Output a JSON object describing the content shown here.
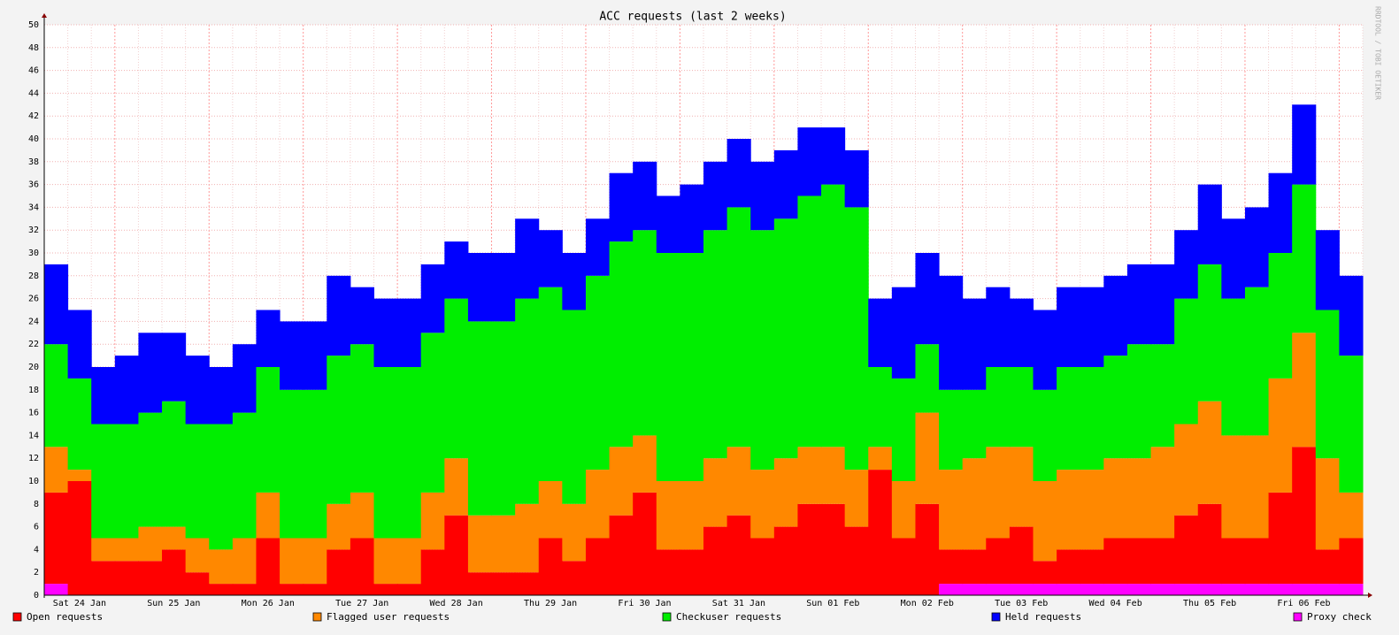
{
  "chart_data": {
    "type": "stacked-area",
    "title": "ACC requests (last 2 weeks)",
    "watermark": "RRDTOOL / TOBI OETIKER",
    "categories": [
      null,
      "Sat 24 Jan",
      null,
      null,
      null,
      "Sun 25 Jan",
      null,
      null,
      null,
      "Mon 26 Jan",
      null,
      null,
      null,
      "Tue 27 Jan",
      null,
      null,
      null,
      "Wed 28 Jan",
      null,
      null,
      null,
      "Thu 29 Jan",
      null,
      null,
      null,
      "Fri 30 Jan",
      null,
      null,
      null,
      "Sat 31 Jan",
      null,
      null,
      null,
      "Sun 01 Feb",
      null,
      null,
      null,
      "Mon 02 Feb",
      null,
      null,
      null,
      "Tue 03 Feb",
      null,
      null,
      null,
      "Wed 04 Feb",
      null,
      null,
      null,
      "Thu 05 Feb",
      null,
      null,
      null,
      "Fri 06 Feb",
      null,
      null
    ],
    "series": [
      {
        "name": "Open requests",
        "color": "#ff0000",
        "values": [
          8,
          10,
          3,
          3,
          3,
          4,
          2,
          1,
          1,
          5,
          1,
          1,
          4,
          5,
          1,
          1,
          4,
          7,
          2,
          2,
          2,
          5,
          3,
          5,
          7,
          9,
          4,
          4,
          6,
          7,
          5,
          6,
          8,
          8,
          6,
          11,
          5,
          8,
          3,
          3,
          4,
          5,
          2,
          3,
          3,
          4,
          4,
          4,
          6,
          7,
          4,
          4,
          8,
          12,
          3,
          4
        ]
      },
      {
        "name": "Flagged user requests",
        "color": "#ff8800",
        "values": [
          4,
          1,
          2,
          2,
          3,
          2,
          3,
          3,
          4,
          4,
          4,
          4,
          4,
          4,
          4,
          4,
          5,
          5,
          5,
          5,
          6,
          5,
          5,
          6,
          6,
          5,
          6,
          6,
          6,
          6,
          6,
          6,
          5,
          5,
          5,
          2,
          5,
          8,
          7,
          8,
          8,
          7,
          7,
          7,
          7,
          7,
          7,
          8,
          8,
          9,
          9,
          9,
          10,
          10,
          8,
          4
        ]
      },
      {
        "name": "Checkuser requests",
        "color": "#00ee00",
        "values": [
          9,
          8,
          10,
          10,
          10,
          11,
          10,
          11,
          11,
          11,
          13,
          13,
          13,
          13,
          15,
          15,
          14,
          14,
          17,
          17,
          18,
          17,
          17,
          17,
          18,
          18,
          20,
          20,
          20,
          21,
          21,
          21,
          22,
          23,
          23,
          7,
          9,
          6,
          7,
          6,
          7,
          7,
          8,
          9,
          9,
          9,
          10,
          9,
          11,
          12,
          12,
          13,
          11,
          13,
          13,
          12
        ]
      },
      {
        "name": "Held requests",
        "color": "#0000ff",
        "values": [
          7,
          6,
          5,
          6,
          7,
          6,
          6,
          5,
          6,
          5,
          6,
          6,
          7,
          5,
          6,
          6,
          6,
          5,
          6,
          6,
          7,
          5,
          5,
          5,
          6,
          6,
          5,
          6,
          6,
          6,
          6,
          6,
          6,
          5,
          5,
          6,
          8,
          8,
          10,
          8,
          7,
          6,
          7,
          7,
          7,
          7,
          7,
          7,
          6,
          7,
          7,
          7,
          7,
          7,
          7,
          7
        ]
      },
      {
        "name": "Proxy check",
        "color": "#ff00ff",
        "values": [
          1,
          0,
          0,
          0,
          0,
          0,
          0,
          0,
          0,
          0,
          0,
          0,
          0,
          0,
          0,
          0,
          0,
          0,
          0,
          0,
          0,
          0,
          0,
          0,
          0,
          0,
          0,
          0,
          0,
          0,
          0,
          0,
          0,
          0,
          0,
          0,
          0,
          0,
          1,
          1,
          1,
          1,
          1,
          1,
          1,
          1,
          1,
          1,
          1,
          1,
          1,
          1,
          1,
          1,
          1,
          1
        ]
      }
    ],
    "ylim": [
      0,
      50
    ],
    "yticks": [
      0,
      2,
      4,
      6,
      8,
      10,
      12,
      14,
      16,
      18,
      20,
      22,
      24,
      26,
      28,
      30,
      32,
      34,
      36,
      38,
      40,
      42,
      44,
      46,
      48,
      50
    ],
    "grid": true
  }
}
